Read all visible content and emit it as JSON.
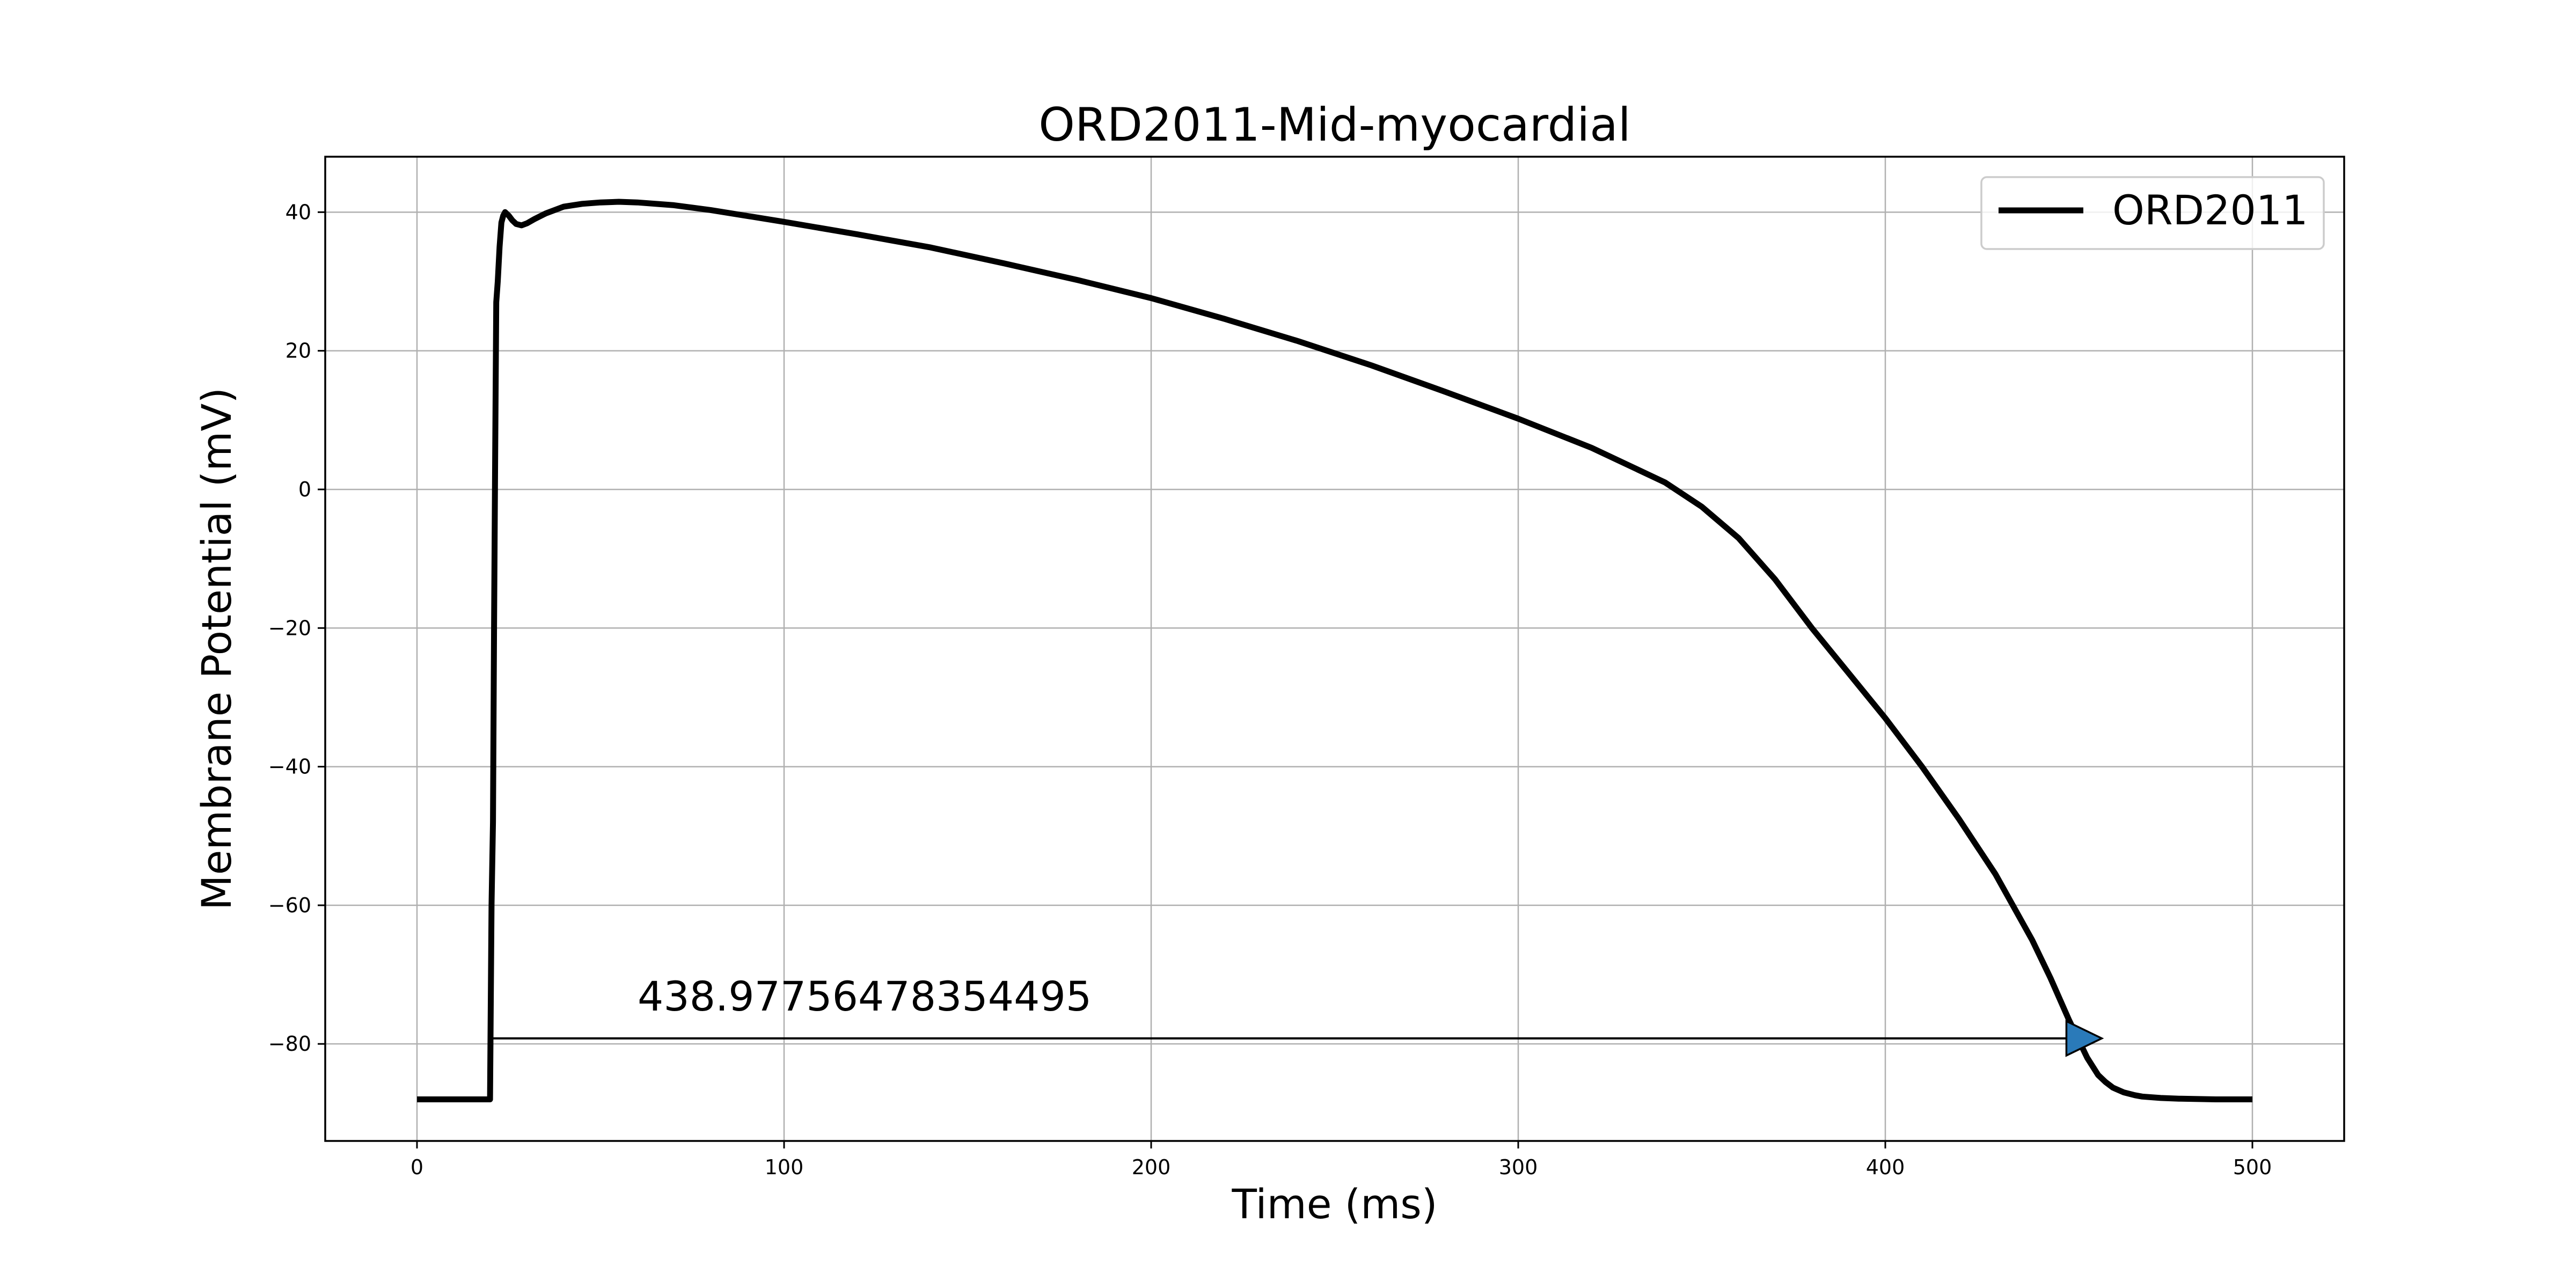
{
  "chart_data": {
    "type": "line",
    "title": "ORD2011-Mid-myocardial",
    "xlabel": "Time (ms)",
    "ylabel": "Membrane Potential (mV)",
    "xlim": [
      -25,
      525
    ],
    "ylim": [
      -94,
      48
    ],
    "xticks": [
      0,
      100,
      200,
      300,
      400,
      500
    ],
    "yticks": [
      -80,
      -60,
      -40,
      -20,
      0,
      20,
      40
    ],
    "xtick_labels": [
      "0",
      "100",
      "200",
      "300",
      "400",
      "500"
    ],
    "ytick_labels": [
      "−80",
      "−60",
      "−40",
      "−20",
      "0",
      "20",
      "40"
    ],
    "grid": true,
    "legend_position": "upper-right",
    "series": [
      {
        "name": "ORD2011",
        "color": "#000000",
        "x": [
          0,
          19.9,
          20.3,
          20.7,
          21.0,
          21.3,
          21.6,
          22.0,
          22.5,
          23.0,
          23.5,
          24.0,
          25.0,
          26.0,
          27.0,
          28.5,
          30.0,
          32.0,
          35.0,
          40.0,
          45.0,
          50.0,
          55.0,
          60.0,
          70.0,
          80.0,
          100.0,
          120.0,
          140.0,
          160.0,
          180.0,
          200.0,
          220.0,
          240.0,
          260.0,
          280.0,
          300.0,
          320.0,
          340.0,
          350.0,
          360.0,
          370.0,
          380.0,
          390.0,
          400.0,
          410.0,
          420.0,
          430.0,
          440.0,
          445.0,
          450.0,
          455.0,
          458.0,
          460.0,
          462.0,
          465.0,
          468.0,
          470.0,
          475.0,
          480.0,
          490.0,
          500.0
        ],
        "y": [
          -88,
          -88,
          -60,
          -48,
          -20,
          5,
          27,
          30,
          35,
          38.5,
          39.5,
          40,
          39.5,
          38.8,
          38.3,
          38.1,
          38.4,
          39.0,
          39.8,
          40.8,
          41.2,
          41.4,
          41.5,
          41.4,
          41.0,
          40.3,
          38.6,
          36.8,
          34.9,
          32.6,
          30.2,
          27.6,
          24.6,
          21.4,
          17.9,
          14.1,
          10.2,
          6.0,
          1.0,
          -2.5,
          -7.0,
          -13.0,
          -20.0,
          -26.5,
          -33.0,
          -40.0,
          -47.5,
          -55.5,
          -65.0,
          -70.5,
          -76.5,
          -82.0,
          -84.5,
          -85.5,
          -86.3,
          -87.0,
          -87.4,
          -87.6,
          -87.8,
          -87.9,
          -88.0,
          -88.0
        ]
      }
    ],
    "annotations": [
      {
        "text": "438.97756478354495",
        "arrow_x_start": 20.0,
        "arrow_x_end": 458.98,
        "arrow_y": -79.2,
        "arrow_head_color": "#2a7ab9"
      }
    ]
  }
}
